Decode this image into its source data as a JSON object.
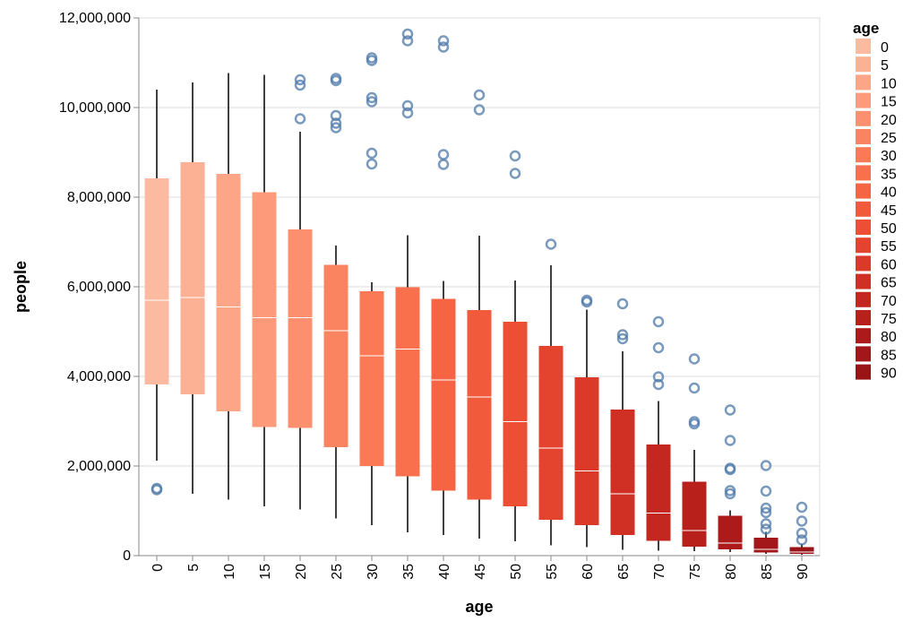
{
  "chart_data": {
    "type": "boxplot",
    "xlabel": "age",
    "ylabel": "people",
    "ylim": [
      0,
      12000000
    ],
    "y_ticks": [
      0,
      2000000,
      4000000,
      6000000,
      8000000,
      10000000,
      12000000
    ],
    "y_tick_labels": [
      "0",
      "2,000,000",
      "4,000,000",
      "6,000,000",
      "8,000,000",
      "10,000,000",
      "12,000,000"
    ],
    "grid": true,
    "legend": {
      "title": "age",
      "placement": "right",
      "entries": [
        "0",
        "5",
        "10",
        "15",
        "20",
        "25",
        "30",
        "35",
        "40",
        "45",
        "50",
        "55",
        "60",
        "65",
        "70",
        "75",
        "80",
        "85",
        "90"
      ]
    },
    "colors": [
      "#fcbba1",
      "#fcb094",
      "#fca587",
      "#fc9a7a",
      "#fc8f6d",
      "#fb8460",
      "#fb7a55",
      "#f8704c",
      "#f56544",
      "#f15a3b",
      "#ec4f34",
      "#e4442d",
      "#db3a28",
      "#d03023",
      "#c4271f",
      "#b8201c",
      "#ad1a1a",
      "#a31619",
      "#991317"
    ],
    "outlier_color": "#4c78a8",
    "boxes": [
      {
        "age": "0",
        "whisker_low": 2120000,
        "q1": 3820000,
        "median": 5700000,
        "q3": 8420000,
        "whisker_high": 10400000,
        "outliers": [
          1470000,
          1500000
        ]
      },
      {
        "age": "5",
        "whisker_low": 1380000,
        "q1": 3600000,
        "median": 5760000,
        "q3": 8780000,
        "whisker_high": 10560000,
        "outliers": []
      },
      {
        "age": "10",
        "whisker_low": 1250000,
        "q1": 3220000,
        "median": 5550000,
        "q3": 8520000,
        "whisker_high": 10770000,
        "outliers": []
      },
      {
        "age": "15",
        "whisker_low": 1100000,
        "q1": 2870000,
        "median": 5310000,
        "q3": 8110000,
        "whisker_high": 10730000,
        "outliers": []
      },
      {
        "age": "20",
        "whisker_low": 1030000,
        "q1": 2850000,
        "median": 5310000,
        "q3": 7280000,
        "whisker_high": 9460000,
        "outliers": [
          9750000,
          10500000,
          10620000
        ]
      },
      {
        "age": "25",
        "whisker_low": 830000,
        "q1": 2420000,
        "median": 5020000,
        "q3": 6490000,
        "whisker_high": 6920000,
        "outliers": [
          9550000,
          9650000,
          9820000,
          10600000,
          10650000
        ]
      },
      {
        "age": "30",
        "whisker_low": 680000,
        "q1": 2000000,
        "median": 4460000,
        "q3": 5900000,
        "whisker_high": 6100000,
        "outliers": [
          8740000,
          8980000,
          10130000,
          10220000,
          11050000,
          11110000
        ]
      },
      {
        "age": "35",
        "whisker_low": 520000,
        "q1": 1770000,
        "median": 4610000,
        "q3": 5990000,
        "whisker_high": 7150000,
        "outliers": [
          9880000,
          10040000,
          11490000,
          11640000
        ]
      },
      {
        "age": "40",
        "whisker_low": 460000,
        "q1": 1450000,
        "median": 3920000,
        "q3": 5730000,
        "whisker_high": 6130000,
        "outliers": [
          8730000,
          8950000,
          11350000,
          11490000
        ]
      },
      {
        "age": "45",
        "whisker_low": 380000,
        "q1": 1250000,
        "median": 3540000,
        "q3": 5480000,
        "whisker_high": 7140000,
        "outliers": [
          9950000,
          10280000
        ]
      },
      {
        "age": "50",
        "whisker_low": 320000,
        "q1": 1100000,
        "median": 2990000,
        "q3": 5220000,
        "whisker_high": 6140000,
        "outliers": [
          8530000,
          8920000
        ]
      },
      {
        "age": "55",
        "whisker_low": 230000,
        "q1": 800000,
        "median": 2400000,
        "q3": 4680000,
        "whisker_high": 6480000,
        "outliers": [
          6950000
        ]
      },
      {
        "age": "60",
        "whisker_low": 190000,
        "q1": 680000,
        "median": 1890000,
        "q3": 3980000,
        "whisker_high": 5490000,
        "outliers": [
          5660000,
          5700000
        ]
      },
      {
        "age": "65",
        "whisker_low": 130000,
        "q1": 460000,
        "median": 1380000,
        "q3": 3260000,
        "whisker_high": 4560000,
        "outliers": [
          4840000,
          4930000,
          5620000
        ]
      },
      {
        "age": "70",
        "whisker_low": 110000,
        "q1": 330000,
        "median": 950000,
        "q3": 2480000,
        "whisker_high": 3450000,
        "outliers": [
          3820000,
          3990000,
          4640000,
          5220000
        ]
      },
      {
        "age": "75",
        "whisker_low": 100000,
        "q1": 200000,
        "median": 560000,
        "q3": 1650000,
        "whisker_high": 2360000,
        "outliers": [
          2940000,
          2990000,
          3740000,
          4390000
        ]
      },
      {
        "age": "80",
        "whisker_low": 80000,
        "q1": 140000,
        "median": 280000,
        "q3": 890000,
        "whisker_high": 1010000,
        "outliers": [
          1380000,
          1450000,
          1920000,
          1950000,
          2570000,
          3250000
        ]
      },
      {
        "age": "85",
        "whisker_low": 40000,
        "q1": 70000,
        "median": 140000,
        "q3": 400000,
        "whisker_high": 530000,
        "outliers": [
          590000,
          710000,
          960000,
          1060000,
          1440000,
          2010000
        ]
      },
      {
        "age": "90",
        "whisker_low": 20000,
        "q1": 40000,
        "median": 80000,
        "q3": 190000,
        "whisker_high": 260000,
        "outliers": [
          350000,
          500000,
          770000,
          1080000
        ]
      }
    ]
  }
}
